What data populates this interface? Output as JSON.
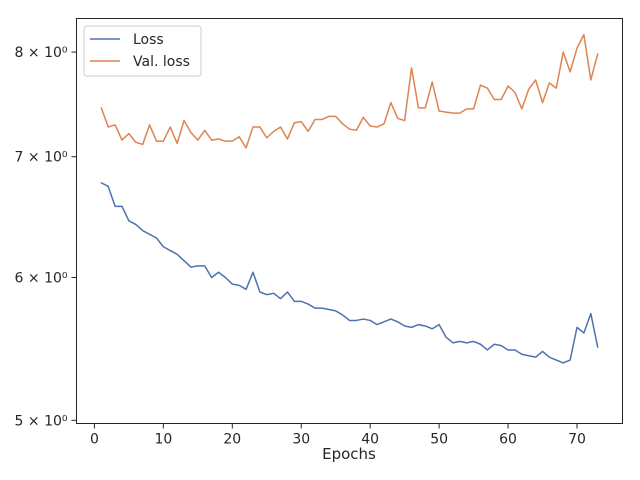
{
  "chart_data": {
    "type": "line",
    "xlabel": "Epochs",
    "ylabel": "",
    "yscale": "log",
    "xlim": [
      -2.6,
      76.6
    ],
    "ylim": [
      4.98,
      8.35
    ],
    "grid": false,
    "legend_position": "top-left",
    "x_ticks": [
      {
        "value": 0,
        "label": "0"
      },
      {
        "value": 10,
        "label": "10"
      },
      {
        "value": 20,
        "label": "20"
      },
      {
        "value": 30,
        "label": "30"
      },
      {
        "value": 40,
        "label": "40"
      },
      {
        "value": 50,
        "label": "50"
      },
      {
        "value": 60,
        "label": "60"
      },
      {
        "value": 70,
        "label": "70"
      }
    ],
    "y_ticks": [
      {
        "value": 5,
        "label": "5 × 10⁰"
      },
      {
        "value": 6,
        "label": "6 × 10⁰"
      },
      {
        "value": 7,
        "label": "7 × 10⁰"
      },
      {
        "value": 8,
        "label": "8 × 10⁰"
      }
    ],
    "x": [
      1,
      2,
      3,
      4,
      5,
      6,
      7,
      8,
      9,
      10,
      11,
      12,
      13,
      14,
      15,
      16,
      17,
      18,
      19,
      20,
      21,
      22,
      23,
      24,
      25,
      26,
      27,
      28,
      29,
      30,
      31,
      32,
      33,
      34,
      35,
      36,
      37,
      38,
      39,
      40,
      41,
      42,
      43,
      44,
      45,
      46,
      47,
      48,
      49,
      50,
      51,
      52,
      53,
      54,
      55,
      56,
      57,
      58,
      59,
      60,
      61,
      62,
      63,
      64,
      65,
      66,
      67,
      68,
      69,
      70,
      71,
      72,
      73
    ],
    "series": [
      {
        "name": "Loss",
        "color": "#4c72b0",
        "values": [
          6.77,
          6.74,
          6.57,
          6.57,
          6.45,
          6.42,
          6.37,
          6.34,
          6.31,
          6.24,
          6.21,
          6.18,
          6.13,
          6.08,
          6.09,
          6.09,
          6.0,
          6.04,
          6.0,
          5.95,
          5.94,
          5.91,
          6.04,
          5.89,
          5.87,
          5.88,
          5.84,
          5.89,
          5.82,
          5.82,
          5.8,
          5.77,
          5.77,
          5.76,
          5.75,
          5.72,
          5.68,
          5.68,
          5.69,
          5.68,
          5.65,
          5.67,
          5.69,
          5.67,
          5.64,
          5.63,
          5.65,
          5.64,
          5.62,
          5.65,
          5.56,
          5.52,
          5.53,
          5.52,
          5.53,
          5.51,
          5.47,
          5.51,
          5.5,
          5.47,
          5.47,
          5.44,
          5.43,
          5.42,
          5.46,
          5.42,
          5.4,
          5.38,
          5.4,
          5.63,
          5.59,
          5.73,
          5.49
        ]
      },
      {
        "name": "Val. loss",
        "color": "#dd8452",
        "values": [
          7.45,
          7.27,
          7.29,
          7.15,
          7.21,
          7.13,
          7.11,
          7.29,
          7.14,
          7.14,
          7.27,
          7.12,
          7.33,
          7.22,
          7.15,
          7.24,
          7.15,
          7.16,
          7.14,
          7.14,
          7.18,
          7.08,
          7.27,
          7.27,
          7.17,
          7.23,
          7.27,
          7.16,
          7.31,
          7.32,
          7.23,
          7.34,
          7.34,
          7.37,
          7.37,
          7.3,
          7.25,
          7.24,
          7.36,
          7.28,
          7.27,
          7.3,
          7.5,
          7.35,
          7.33,
          7.84,
          7.45,
          7.45,
          7.7,
          7.42,
          7.41,
          7.4,
          7.4,
          7.44,
          7.44,
          7.67,
          7.64,
          7.53,
          7.53,
          7.66,
          7.6,
          7.44,
          7.63,
          7.72,
          7.5,
          7.69,
          7.64,
          8.0,
          7.8,
          8.04,
          8.18,
          7.72,
          7.98
        ]
      }
    ]
  }
}
